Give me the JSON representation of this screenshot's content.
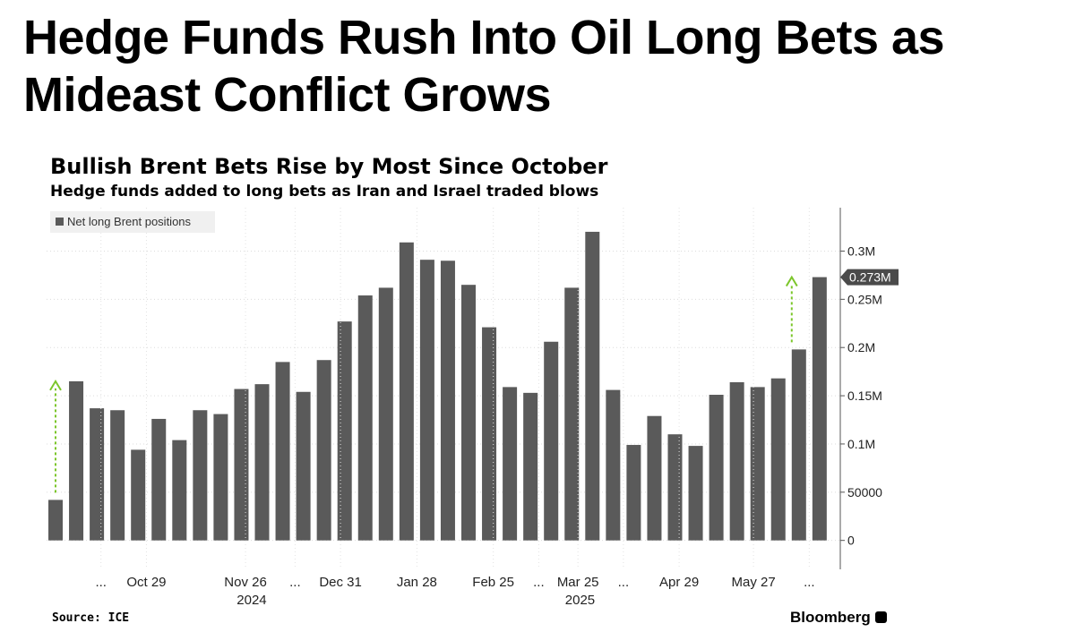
{
  "headline": "Hedge Funds Rush Into Oil Long Bets as Mideast Conflict Grows",
  "source": "Source: ICE",
  "brand": "Bloomberg",
  "chart_data": {
    "type": "bar",
    "title": "Bullish Brent Bets Rise by Most Since October",
    "subtitle": "Hedge funds added to long bets as Iran and Israel traded blows",
    "legend": [
      "Net long Brent positions"
    ],
    "legend_position": "top-left",
    "bar_color": "#5a5a5a",
    "arrow_color": "#7cc62b",
    "ylim": [
      -30000,
      345000
    ],
    "yticks": [
      0,
      50000,
      100000,
      150000,
      200000,
      250000,
      300000
    ],
    "ytick_labels": [
      "0",
      "50000",
      "0.1M",
      "0.15M",
      "0.2M",
      "0.25M",
      "0.3M"
    ],
    "grid": true,
    "x_tick_labels": [
      "...",
      "Oct 29",
      "Nov 26",
      "...",
      "Dec 31",
      "Jan 28",
      "Feb 25",
      "...",
      "Mar 25",
      "...",
      "Apr 29",
      "May 27",
      "..."
    ],
    "year_labels": [
      "2024",
      "2025"
    ],
    "series": [
      {
        "name": "Net long Brent positions",
        "values": [
          42000,
          165000,
          137000,
          135000,
          94000,
          126000,
          104000,
          135000,
          131000,
          157000,
          162000,
          185000,
          154000,
          187000,
          227000,
          254000,
          262000,
          309000,
          291000,
          290000,
          265000,
          221000,
          159000,
          153000,
          206000,
          262000,
          320000,
          156000,
          99000,
          129000,
          110000,
          98000,
          151000,
          164000,
          159000,
          168000,
          198000,
          273000
        ]
      }
    ],
    "last_value_label": "0.273M"
  }
}
